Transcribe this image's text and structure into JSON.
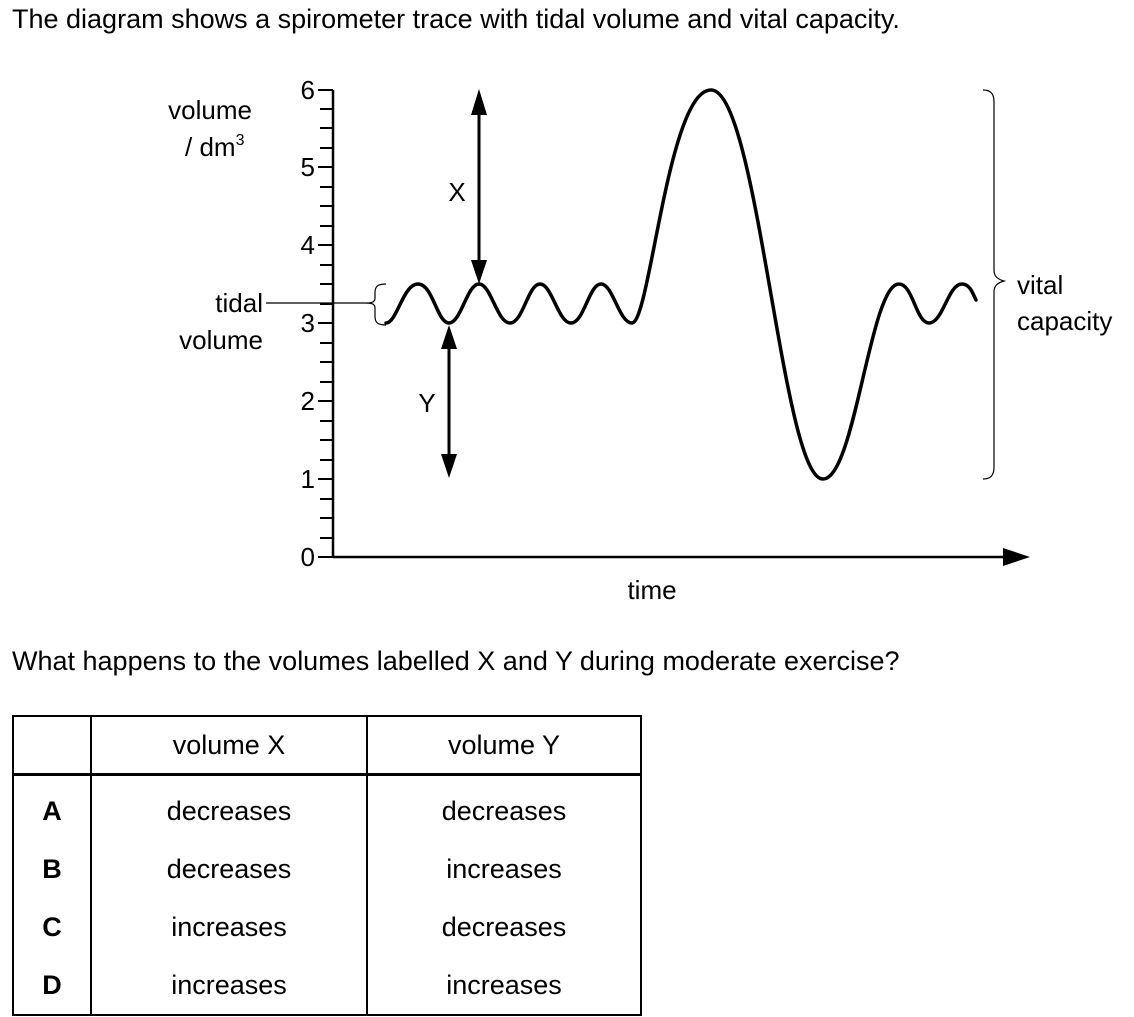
{
  "intro_text": "The diagram shows a spirometer trace with tidal volume and vital capacity.",
  "diagram": {
    "y_axis_label_line1": "volume",
    "y_axis_label_line2": "/ dm",
    "y_axis_label_sup": "3",
    "x_axis_label": "time",
    "y_ticks": [
      "0",
      "1",
      "2",
      "3",
      "4",
      "5",
      "6"
    ],
    "tidal_label_line1": "tidal",
    "tidal_label_line2": "volume",
    "vital_label_line1": "vital",
    "vital_label_line2": "capacity",
    "arrow_x_label": "X",
    "arrow_y_label": "Y",
    "trace_description_values": {
      "tidal_min": 3,
      "tidal_max": 3.5,
      "max_inspiration": 6,
      "max_expiration": 1
    }
  },
  "question_text": "What happens to the volumes labelled X and Y during moderate exercise?",
  "answer_table": {
    "header": [
      "",
      "volume X",
      "volume Y"
    ],
    "rows": [
      {
        "key": "A",
        "x": "decreases",
        "y": "decreases"
      },
      {
        "key": "B",
        "x": "decreases",
        "y": "increases"
      },
      {
        "key": "C",
        "x": "increases",
        "y": "decreases"
      },
      {
        "key": "D",
        "x": "increases",
        "y": "increases"
      }
    ]
  }
}
